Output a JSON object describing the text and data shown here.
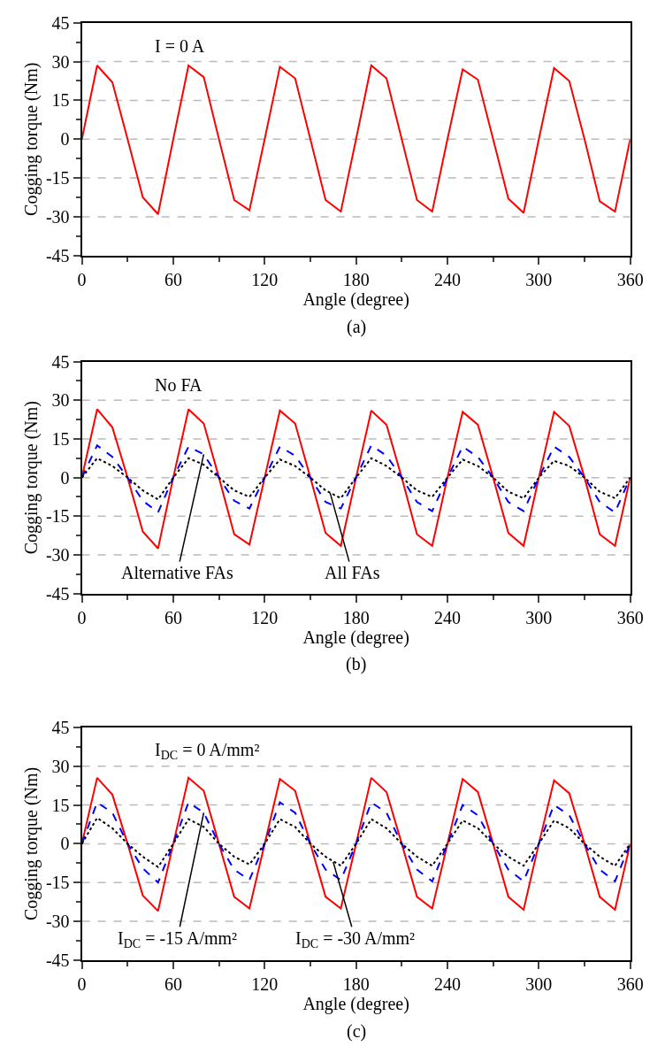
{
  "chart_data": [
    {
      "type": "line",
      "xlabel": "Angle (degree)",
      "ylabel": "Cogging torque (Nm)",
      "xlim": [
        0,
        360
      ],
      "xticks": [
        0,
        60,
        120,
        180,
        240,
        300,
        360
      ],
      "ylim": [
        -45,
        45
      ],
      "yticks": [
        -45,
        -30,
        -15,
        0,
        15,
        30,
        45
      ],
      "grid": "y",
      "marker": "none",
      "x": [
        0,
        10,
        20,
        30,
        40,
        50,
        60,
        70,
        80,
        90,
        100,
        110,
        120,
        130,
        140,
        150,
        160,
        170,
        180,
        190,
        200,
        210,
        220,
        230,
        240,
        250,
        260,
        270,
        280,
        290,
        300,
        310,
        320,
        330,
        340,
        350,
        360
      ],
      "series": [
        {
          "color": "#ff0000",
          "line_style": "solid",
          "values": [
            0,
            28.5,
            22,
            0,
            -22.5,
            -29,
            0,
            28.5,
            24,
            0,
            -23.5,
            -27.5,
            0,
            28,
            23.5,
            0,
            -23.5,
            -28,
            0,
            28.5,
            23.5,
            0,
            -23.5,
            -28,
            0,
            27,
            23,
            0,
            -23,
            -28.5,
            0,
            27.5,
            22.5,
            0,
            -24,
            -28,
            0
          ]
        }
      ],
      "annotations": [
        "I = 0 A",
        "(a)"
      ]
    },
    {
      "type": "line",
      "xlabel": "Angle (degree)",
      "ylabel": "Cogging torque (Nm)",
      "xlim": [
        0,
        360
      ],
      "xticks": [
        0,
        60,
        120,
        180,
        240,
        300,
        360
      ],
      "ylim": [
        -45,
        45
      ],
      "yticks": [
        -45,
        -30,
        -15,
        0,
        15,
        30,
        45
      ],
      "grid": "y",
      "marker": "none",
      "x": [
        0,
        10,
        20,
        30,
        40,
        50,
        60,
        70,
        80,
        90,
        100,
        110,
        120,
        130,
        140,
        150,
        160,
        170,
        180,
        190,
        200,
        210,
        220,
        230,
        240,
        250,
        260,
        270,
        280,
        290,
        300,
        310,
        320,
        330,
        340,
        350,
        360
      ],
      "series": [
        {
          "color": "#ff0000",
          "line_style": "solid",
          "values": [
            0,
            26.5,
            19.5,
            0,
            -21,
            -27.5,
            0,
            26.5,
            21,
            0,
            -22,
            -26,
            0,
            26,
            21,
            0,
            -21.5,
            -26.5,
            0,
            26,
            20.5,
            0,
            -22,
            -26.5,
            0,
            25.5,
            20.5,
            0,
            -21.5,
            -26.5,
            0,
            25.5,
            20,
            0,
            -22,
            -26.5,
            0
          ]
        },
        {
          "color": "#0000ff",
          "line_style": "dashed",
          "values": [
            0,
            12.5,
            8,
            0,
            -9,
            -13.5,
            0,
            12,
            9,
            0,
            -9,
            -12,
            0,
            12,
            8.5,
            0,
            -9.5,
            -12,
            0,
            12.5,
            8.5,
            0,
            -9.5,
            -13,
            0,
            12,
            8,
            0,
            -9.5,
            -13,
            0,
            12,
            8,
            0,
            -9.5,
            -13.5,
            0
          ]
        },
        {
          "color": "#000000",
          "line_style": "dotted",
          "values": [
            0,
            7.5,
            4.5,
            0,
            -5,
            -8.5,
            0,
            7.5,
            5,
            0,
            -5,
            -7.5,
            0,
            7,
            4.5,
            0,
            -5,
            -8,
            0,
            7.5,
            4.5,
            0,
            -5,
            -7.5,
            0,
            7,
            4.5,
            0,
            -5.5,
            -8,
            0,
            6.5,
            4.5,
            0,
            -5.5,
            -8,
            0
          ]
        }
      ],
      "annotations": [
        "No FA",
        {
          "text": "Alternative FAs",
          "x": 80,
          "y": 9
        },
        {
          "text": "All FAs",
          "x": 163,
          "y": -6
        },
        "(b)"
      ]
    },
    {
      "type": "line",
      "xlabel": "Angle (degree)",
      "ylabel": "Cogging torque (Nm)",
      "xlim": [
        0,
        360
      ],
      "xticks": [
        0,
        60,
        120,
        180,
        240,
        300,
        360
      ],
      "ylim": [
        -45,
        45
      ],
      "yticks": [
        -45,
        -30,
        -15,
        0,
        15,
        30,
        45
      ],
      "grid": "y",
      "marker": "none",
      "x": [
        0,
        10,
        20,
        30,
        40,
        50,
        60,
        70,
        80,
        90,
        100,
        110,
        120,
        130,
        140,
        150,
        160,
        170,
        180,
        190,
        200,
        210,
        220,
        230,
        240,
        250,
        260,
        270,
        280,
        290,
        300,
        310,
        320,
        330,
        340,
        350,
        360
      ],
      "series": [
        {
          "color": "#ff0000",
          "line_style": "solid",
          "values": [
            0,
            25.5,
            19,
            0,
            -20,
            -26,
            0,
            25.5,
            20.5,
            0,
            -20.5,
            -25,
            0,
            25,
            20.5,
            0,
            -20.5,
            -25,
            0,
            25.5,
            20,
            0,
            -20.5,
            -25,
            0,
            25,
            20,
            0,
            -20.5,
            -25.5,
            0,
            24.5,
            19.5,
            0,
            -20.5,
            -25.5,
            0
          ]
        },
        {
          "color": "#0000ff",
          "line_style": "dashed",
          "values": [
            0,
            16,
            12,
            0,
            -9.5,
            -15,
            0,
            16,
            12,
            0,
            -10,
            -14,
            0,
            16,
            12,
            0,
            -10,
            -14,
            0,
            16,
            12,
            0,
            -10,
            -14.5,
            0,
            15,
            11,
            0,
            -10,
            -14.5,
            0,
            15,
            11,
            0,
            -10,
            -14.5,
            0
          ]
        },
        {
          "color": "#000000",
          "line_style": "dotted",
          "values": [
            0,
            10,
            6,
            0,
            -5,
            -9,
            0,
            9.5,
            6.5,
            0,
            -5,
            -8,
            0,
            9.5,
            6.5,
            0,
            -5,
            -8.5,
            0,
            9.5,
            6,
            0,
            -5,
            -8.5,
            0,
            9,
            6,
            0,
            -5,
            -8.5,
            0,
            9,
            6,
            0,
            -5,
            -8.5,
            0
          ]
        }
      ],
      "annotations": [
        "I$_{DC}$ = 0 A/mm²",
        {
          "text": "I$_{DC}$ = -15 A/mm²",
          "x": 80,
          "y": 12
        },
        {
          "text": "I$_{DC}$ = -30 A/mm²",
          "x": 165,
          "y": -7
        },
        "(c)"
      ]
    }
  ]
}
